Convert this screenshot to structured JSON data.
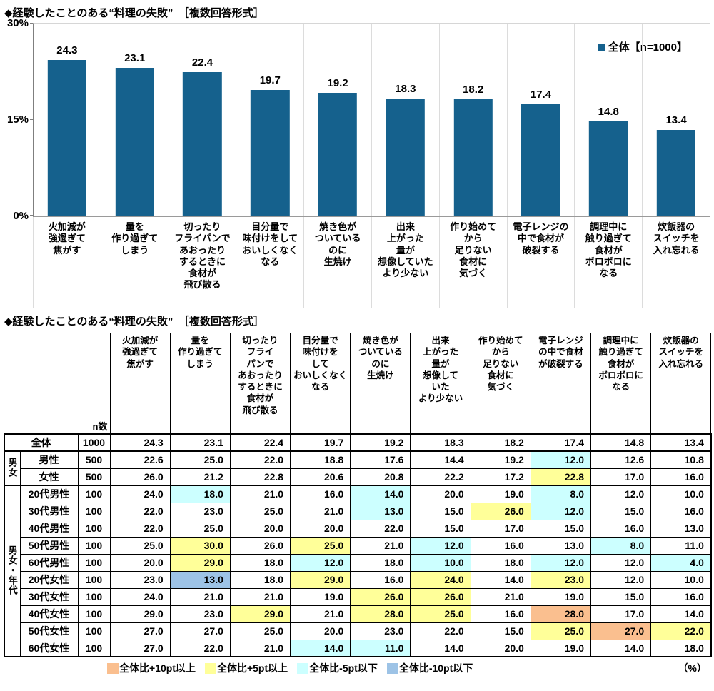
{
  "chart": {
    "title": "◆経験したことのある“料理の失敗”　［複数回答形式］",
    "legend_label": "全体【n=1000】",
    "bar_color": "#15618D",
    "y_ticks": [
      "30%",
      "15%",
      "0%"
    ]
  },
  "chart_data": {
    "type": "bar",
    "title": "経験したことのある“料理の失敗”［複数回答形式］",
    "categories": [
      "火加減が\n強過ぎて\n焦がす",
      "量を\n作り過ぎて\nしまう",
      "切ったり\nフライパンで\nあおったり\nするときに\n食材が\n飛び散る",
      "目分量で\n味付けをして\nおいしくなく\nなる",
      "焼き色が\nついている\nのに\n生焼け",
      "出来\n上がった\n量が\n想像していた\nより少ない",
      "作り始めて\nから\n足りない\n食材に\n気づく",
      "電子レンジの\n中で食材が\n破裂する",
      "調理中に\n触り過ぎて\n食材が\nボロボロに\nなる",
      "炊飯器の\nスイッチを\n入れ忘れる"
    ],
    "values": [
      24.3,
      23.1,
      22.4,
      19.7,
      19.2,
      18.3,
      18.2,
      17.4,
      14.8,
      13.4
    ],
    "series_name": "全体【n=1000】",
    "xlabel": "",
    "ylabel": "%",
    "ylim": [
      0,
      30
    ],
    "grid": false,
    "legend_position": "top-right"
  },
  "table": {
    "title": "◆経験したことのある“料理の失敗”　［複数回答形式］",
    "n_header": "n数",
    "col_headers": [
      "火加減が\n強過ぎて\n焦がす",
      "量を\n作り過ぎて\nしまう",
      "切ったり\nフライ\nパンで\nあおったり\nするときに\n食材が\n飛び散る",
      "目分量で\n味付けを\nして\nおいしくなく\nなる",
      "焼き色が\nついている\nのに\n生焼け",
      "出来\n上がった\n量が\n想像して\nいた\nより少ない",
      "作り始めて\nから\n足りない\n食材に\n気づく",
      "電子レンジ\nの中で食材\nが破裂する",
      "調理中に\n触り過ぎて\n食材が\nボロボロに\nなる",
      "炊飯器の\nスイッチを\n入れ忘れる"
    ],
    "groups": [
      {
        "label": "男女",
        "span": 2
      },
      {
        "label": "男女・年代",
        "span": 10
      }
    ],
    "rows": [
      {
        "label": "全体",
        "n": "1000",
        "values": [
          "24.3",
          "23.1",
          "22.4",
          "19.7",
          "19.2",
          "18.3",
          "18.2",
          "17.4",
          "14.8",
          "13.4"
        ],
        "hl": [
          "",
          "",
          "",
          "",
          "",
          "",
          "",
          "",
          "",
          ""
        ]
      },
      {
        "label": "男性",
        "n": "500",
        "values": [
          "22.6",
          "25.0",
          "22.0",
          "18.8",
          "17.6",
          "14.4",
          "19.2",
          "12.0",
          "12.6",
          "10.8"
        ],
        "hl": [
          "",
          "",
          "",
          "",
          "",
          "",
          "",
          "c",
          "",
          ""
        ]
      },
      {
        "label": "女性",
        "n": "500",
        "values": [
          "26.0",
          "21.2",
          "22.8",
          "20.6",
          "20.8",
          "22.2",
          "17.2",
          "22.8",
          "17.0",
          "16.0"
        ],
        "hl": [
          "",
          "",
          "",
          "",
          "",
          "",
          "",
          "y",
          "",
          ""
        ]
      },
      {
        "label": "20代男性",
        "n": "100",
        "values": [
          "24.0",
          "18.0",
          "21.0",
          "16.0",
          "14.0",
          "20.0",
          "19.0",
          "8.0",
          "12.0",
          "10.0"
        ],
        "hl": [
          "",
          "c",
          "",
          "",
          "c",
          "",
          "",
          "c",
          "",
          ""
        ]
      },
      {
        "label": "30代男性",
        "n": "100",
        "values": [
          "22.0",
          "23.0",
          "25.0",
          "21.0",
          "13.0",
          "15.0",
          "26.0",
          "12.0",
          "15.0",
          "16.0"
        ],
        "hl": [
          "",
          "",
          "",
          "",
          "c",
          "",
          "y",
          "c",
          "",
          ""
        ]
      },
      {
        "label": "40代男性",
        "n": "100",
        "values": [
          "22.0",
          "25.0",
          "20.0",
          "20.0",
          "22.0",
          "15.0",
          "17.0",
          "15.0",
          "16.0",
          "13.0"
        ],
        "hl": [
          "",
          "",
          "",
          "",
          "",
          "",
          "",
          "",
          "",
          ""
        ]
      },
      {
        "label": "50代男性",
        "n": "100",
        "values": [
          "25.0",
          "30.0",
          "26.0",
          "25.0",
          "21.0",
          "12.0",
          "16.0",
          "13.0",
          "8.0",
          "11.0"
        ],
        "hl": [
          "",
          "y",
          "",
          "y",
          "",
          "c",
          "",
          "",
          "c",
          ""
        ]
      },
      {
        "label": "60代男性",
        "n": "100",
        "values": [
          "20.0",
          "29.0",
          "18.0",
          "12.0",
          "18.0",
          "10.0",
          "18.0",
          "12.0",
          "12.0",
          "4.0"
        ],
        "hl": [
          "",
          "y",
          "",
          "c",
          "",
          "c",
          "",
          "c",
          "",
          "c"
        ]
      },
      {
        "label": "20代女性",
        "n": "100",
        "values": [
          "23.0",
          "13.0",
          "18.0",
          "29.0",
          "16.0",
          "24.0",
          "14.0",
          "23.0",
          "12.0",
          "10.0"
        ],
        "hl": [
          "",
          "b",
          "",
          "y",
          "",
          "y",
          "",
          "y",
          "",
          ""
        ]
      },
      {
        "label": "30代女性",
        "n": "100",
        "values": [
          "24.0",
          "21.0",
          "21.0",
          "19.0",
          "26.0",
          "26.0",
          "21.0",
          "19.0",
          "15.0",
          "16.0"
        ],
        "hl": [
          "",
          "",
          "",
          "",
          "y",
          "y",
          "",
          "",
          "",
          ""
        ]
      },
      {
        "label": "40代女性",
        "n": "100",
        "values": [
          "29.0",
          "23.0",
          "29.0",
          "21.0",
          "28.0",
          "25.0",
          "16.0",
          "28.0",
          "17.0",
          "14.0"
        ],
        "hl": [
          "",
          "",
          "y",
          "",
          "y",
          "y",
          "",
          "o",
          "",
          ""
        ]
      },
      {
        "label": "50代女性",
        "n": "100",
        "values": [
          "27.0",
          "27.0",
          "25.0",
          "20.0",
          "23.0",
          "22.0",
          "15.0",
          "25.0",
          "27.0",
          "22.0"
        ],
        "hl": [
          "",
          "",
          "",
          "",
          "",
          "",
          "",
          "y",
          "o",
          "y"
        ]
      },
      {
        "label": "60代女性",
        "n": "100",
        "values": [
          "27.0",
          "22.0",
          "21.0",
          "14.0",
          "11.0",
          "14.0",
          "20.0",
          "19.0",
          "14.0",
          "18.0"
        ],
        "hl": [
          "",
          "",
          "",
          "c",
          "c",
          "",
          "",
          "",
          "",
          ""
        ]
      }
    ],
    "legend": [
      {
        "color": "#FABF8F",
        "label": "全体比+10pt以上"
      },
      {
        "color": "#FFFF99",
        "label": "全体比+5pt以上"
      },
      {
        "color": "#CCFFFF",
        "label": "全体比-5pt以下"
      },
      {
        "color": "#9DC3E6",
        "label": "全体比-10pt以下"
      }
    ],
    "unit": "（%）"
  }
}
